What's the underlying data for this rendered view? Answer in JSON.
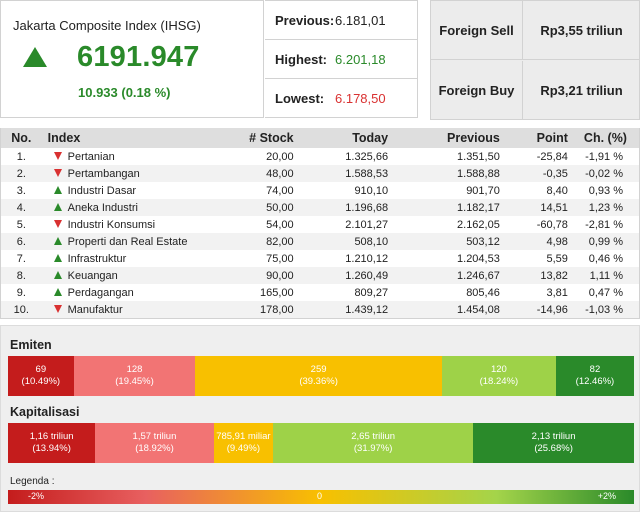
{
  "ihsg": {
    "title": "Jakarta Composite Index (IHSG)",
    "value": "6191.947",
    "change": "10.933 (0.18 %)",
    "trend_icon": "up-triangle-icon",
    "color": "#2a8a2a"
  },
  "stats": {
    "previous_label": "Previous:",
    "previous_value": "6.181,01",
    "highest_label": "Highest:",
    "highest_value": "6.201,18",
    "lowest_label": "Lowest:",
    "lowest_value": "6.178,50"
  },
  "foreign": {
    "sell_label": "Foreign Sell",
    "sell_value": "Rp3,55 triliun",
    "buy_label": "Foreign Buy",
    "buy_value": "Rp3,21 triliun"
  },
  "table": {
    "headers": {
      "no": "No.",
      "index": "Index",
      "stock": "# Stock",
      "today": "Today",
      "previous": "Previous",
      "point": "Point",
      "change": "Ch. (%)"
    },
    "rows": [
      {
        "no": "1.",
        "trend": "down",
        "index": "Pertanian",
        "stock": "20,00",
        "today": "1.325,66",
        "previous": "1.351,50",
        "point": "-25,84",
        "change": "-1,91 %"
      },
      {
        "no": "2.",
        "trend": "down",
        "index": "Pertambangan",
        "stock": "48,00",
        "today": "1.588,53",
        "previous": "1.588,88",
        "point": "-0,35",
        "change": "-0,02 %"
      },
      {
        "no": "3.",
        "trend": "up",
        "index": "Industri Dasar",
        "stock": "74,00",
        "today": "910,10",
        "previous": "901,70",
        "point": "8,40",
        "change": "0,93 %"
      },
      {
        "no": "4.",
        "trend": "up",
        "index": "Aneka Industri",
        "stock": "50,00",
        "today": "1.196,68",
        "previous": "1.182,17",
        "point": "14,51",
        "change": "1,23 %"
      },
      {
        "no": "5.",
        "trend": "down",
        "index": "Industri Konsumsi",
        "stock": "54,00",
        "today": "2.101,27",
        "previous": "2.162,05",
        "point": "-60,78",
        "change": "-2,81 %"
      },
      {
        "no": "6.",
        "trend": "up",
        "index": "Properti dan Real Estate",
        "stock": "82,00",
        "today": "508,10",
        "previous": "503,12",
        "point": "4,98",
        "change": "0,99 %"
      },
      {
        "no": "7.",
        "trend": "up",
        "index": "Infrastruktur",
        "stock": "75,00",
        "today": "1.210,12",
        "previous": "1.204,53",
        "point": "5,59",
        "change": "0,46 %"
      },
      {
        "no": "8.",
        "trend": "up",
        "index": "Keuangan",
        "stock": "90,00",
        "today": "1.260,49",
        "previous": "1.246,67",
        "point": "13,82",
        "change": "1,11 %"
      },
      {
        "no": "9.",
        "trend": "up",
        "index": "Perdagangan",
        "stock": "165,00",
        "today": "809,27",
        "previous": "805,46",
        "point": "3,81",
        "change": "0,47 %"
      },
      {
        "no": "10.",
        "trend": "down",
        "index": "Manufaktur",
        "stock": "178,00",
        "today": "1.439,12",
        "previous": "1.454,08",
        "point": "-14,96",
        "change": "-1,03 %"
      }
    ]
  },
  "emiten": {
    "title": "Emiten",
    "segments": [
      {
        "value": "69",
        "percent": "(10.49%)",
        "share": 10.49,
        "color": "#c41c1c"
      },
      {
        "value": "128",
        "percent": "(19.45%)",
        "share": 19.45,
        "color": "#f27474"
      },
      {
        "value": "259",
        "percent": "(39.36%)",
        "share": 39.36,
        "color": "#f8c000"
      },
      {
        "value": "120",
        "percent": "(18.24%)",
        "share": 18.24,
        "color": "#9ed248"
      },
      {
        "value": "82",
        "percent": "(12.46%)",
        "share": 12.46,
        "color": "#2a8a2a"
      }
    ]
  },
  "kapitalisasi": {
    "title": "Kapitalisasi",
    "segments": [
      {
        "value": "1,16 triliun",
        "percent": "(13.94%)",
        "share": 13.94,
        "color": "#c41c1c"
      },
      {
        "value": "1,57 triliun",
        "percent": "(18.92%)",
        "share": 18.92,
        "color": "#f27474"
      },
      {
        "value": "785,91 miliar",
        "percent": "(9.49%)",
        "share": 9.49,
        "color": "#f8c000"
      },
      {
        "value": "2,65 triliun",
        "percent": "(31.97%)",
        "share": 31.97,
        "color": "#9ed248"
      },
      {
        "value": "2,13 triliun",
        "percent": "(25.68%)",
        "share": 25.68,
        "color": "#2a8a2a"
      }
    ]
  },
  "legend": {
    "label": "Legenda :",
    "min": "-2%",
    "mid": "0",
    "max": "+2%"
  }
}
